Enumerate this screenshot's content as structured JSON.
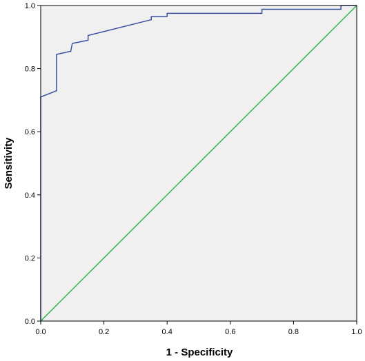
{
  "chart_data": {
    "type": "line",
    "title": "",
    "xlabel": "1 - Specificity",
    "ylabel": "Sensitivity",
    "xlim": [
      0,
      1
    ],
    "ylim": [
      0,
      1
    ],
    "x_ticks": [
      "0.0",
      "0.2",
      "0.4",
      "0.6",
      "0.8",
      "1.0"
    ],
    "y_ticks": [
      "0.0",
      "0.2",
      "0.4",
      "0.6",
      "0.8",
      "1.0"
    ],
    "grid": false,
    "plot_background": "#f0f0f0",
    "series": [
      {
        "color": "#3b4f9e",
        "step": true,
        "points": [
          [
            0.0,
            0.0
          ],
          [
            0.0,
            0.71
          ],
          [
            0.05,
            0.73
          ],
          [
            0.05,
            0.845
          ],
          [
            0.095,
            0.855
          ],
          [
            0.1,
            0.88
          ],
          [
            0.15,
            0.89
          ],
          [
            0.15,
            0.905
          ],
          [
            0.35,
            0.955
          ],
          [
            0.35,
            0.965
          ],
          [
            0.4,
            0.965
          ],
          [
            0.4,
            0.975
          ],
          [
            0.7,
            0.975
          ],
          [
            0.7,
            0.988
          ],
          [
            0.95,
            0.988
          ],
          [
            0.95,
            1.0
          ],
          [
            1.0,
            1.0
          ]
        ]
      },
      {
        "color": "#2db34a",
        "step": false,
        "points": [
          [
            0.0,
            0.0
          ],
          [
            1.0,
            1.0
          ]
        ]
      }
    ]
  }
}
